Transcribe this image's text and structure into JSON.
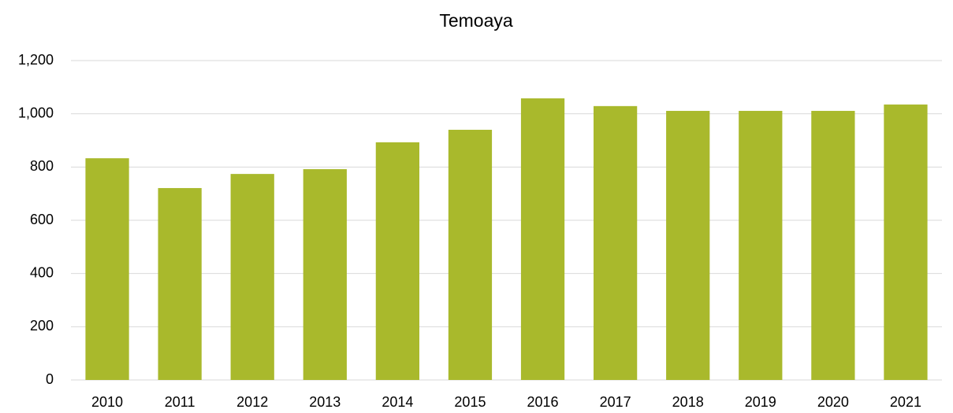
{
  "chart_data": {
    "type": "bar",
    "title": "Temoaya",
    "categories": [
      "2010",
      "2011",
      "2012",
      "2013",
      "2014",
      "2015",
      "2016",
      "2017",
      "2018",
      "2019",
      "2020",
      "2021"
    ],
    "values": [
      833,
      721,
      774,
      792,
      893,
      940,
      1058,
      1029,
      1011,
      1011,
      1011,
      1035
    ],
    "color": "#a9b92c",
    "ylim": [
      0,
      1200
    ],
    "yticks": [
      0,
      200,
      400,
      600,
      800,
      {
        "value": 1000,
        "label": "1,000"
      },
      {
        "value": 1200,
        "label": "1,200"
      }
    ],
    "grid": true
  }
}
